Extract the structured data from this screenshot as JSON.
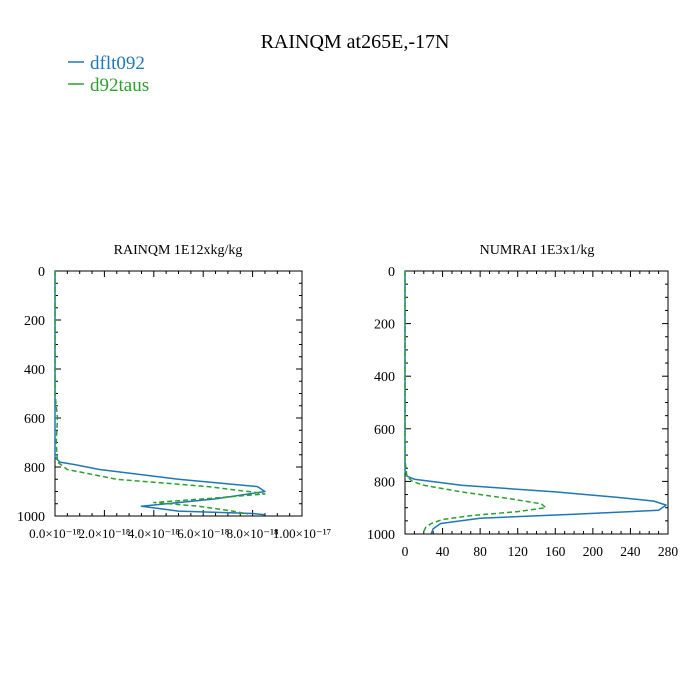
{
  "title": "RAINQM at265E,-17N",
  "legend": {
    "placement": "top-left",
    "entries": [
      {
        "name": "dflt092",
        "color": "#1f77b4",
        "style": "solid"
      },
      {
        "name": "d92taus",
        "color": "#2ca02c",
        "style": "dashed"
      }
    ]
  },
  "chart_data": [
    {
      "type": "line",
      "title": "RAINQM  1E12xkg/kg",
      "xlim": [
        0,
        1e-17
      ],
      "ylim": [
        1000,
        0
      ],
      "y_inverted": true,
      "xtick_labels": [
        "0.0×10⁻¹⁸",
        "2.0×10⁻¹⁸",
        "4.0×10⁻¹⁸",
        "6.0×10⁻¹⁸",
        "8.0×10⁻¹⁸",
        "1.00×10⁻¹⁷"
      ],
      "ytick_labels": [
        "0",
        "200",
        "400",
        "600",
        "800",
        "1000"
      ],
      "xticks": [
        0,
        2e-18,
        4e-18,
        6e-18,
        8e-18,
        1e-17
      ],
      "yticks": [
        0,
        200,
        400,
        600,
        800,
        1000
      ],
      "grid": false,
      "series": [
        {
          "name": "dflt092",
          "color": "#1f77b4",
          "dash": false,
          "points": [
            [
              0,
              0
            ],
            [
              0,
              700
            ],
            [
              0,
              760
            ],
            [
              2e-19,
              780
            ],
            [
              8e-19,
              790
            ],
            [
              1.8e-18,
              810
            ],
            [
              5e-18,
              850
            ],
            [
              8.2e-18,
              880
            ],
            [
              8.5e-18,
              900
            ],
            [
              6.5e-18,
              930
            ],
            [
              3.5e-18,
              960
            ],
            [
              5e-18,
              980
            ],
            [
              8e-18,
              990
            ],
            [
              8.5e-18,
              995
            ]
          ]
        },
        {
          "name": "d92taus",
          "color": "#2ca02c",
          "dash": true,
          "points": [
            [
              0,
              0
            ],
            [
              0,
              500
            ],
            [
              1e-19,
              600
            ],
            [
              5e-20,
              700
            ],
            [
              1e-19,
              780
            ],
            [
              5e-19,
              810
            ],
            [
              2.5e-18,
              850
            ],
            [
              6.2e-18,
              880
            ],
            [
              8.2e-18,
              905
            ],
            [
              8.5e-18,
              910
            ],
            [
              6e-18,
              930
            ],
            [
              4e-18,
              945
            ],
            [
              5.8e-18,
              960
            ],
            [
              7.2e-18,
              980
            ],
            [
              7.8e-18,
              992
            ]
          ]
        }
      ]
    },
    {
      "type": "line",
      "title": "NUMRAI  1E3x1/kg",
      "xlim": [
        0,
        280
      ],
      "ylim": [
        1000,
        0
      ],
      "y_inverted": true,
      "xtick_labels": [
        "0",
        "40",
        "80",
        "120",
        "160",
        "200",
        "240",
        "280"
      ],
      "ytick_labels": [
        "0",
        "200",
        "400",
        "600",
        "800",
        "1000"
      ],
      "xticks": [
        0,
        40,
        80,
        120,
        160,
        200,
        240,
        280
      ],
      "yticks": [
        0,
        200,
        400,
        600,
        800,
        1000
      ],
      "grid": false,
      "series": [
        {
          "name": "dflt092",
          "color": "#1f77b4",
          "dash": false,
          "points": [
            [
              0,
              0
            ],
            [
              0,
              700
            ],
            [
              0,
              760
            ],
            [
              2,
              780
            ],
            [
              10,
              792
            ],
            [
              60,
              815
            ],
            [
              160,
              840
            ],
            [
              225,
              860
            ],
            [
              265,
              875
            ],
            [
              278,
              890
            ],
            [
              270,
              910
            ],
            [
              180,
              925
            ],
            [
              80,
              940
            ],
            [
              38,
              960
            ],
            [
              30,
              980
            ],
            [
              28,
              998
            ]
          ]
        },
        {
          "name": "d92taus",
          "color": "#2ca02c",
          "dash": true,
          "points": [
            [
              0,
              0
            ],
            [
              0,
              720
            ],
            [
              2,
              780
            ],
            [
              8,
              800
            ],
            [
              20,
              815
            ],
            [
              60,
              840
            ],
            [
              110,
              865
            ],
            [
              145,
              885
            ],
            [
              150,
              900
            ],
            [
              120,
              915
            ],
            [
              70,
              930
            ],
            [
              40,
              945
            ],
            [
              28,
              960
            ],
            [
              22,
              975
            ],
            [
              20,
              990
            ],
            [
              18,
              998
            ]
          ]
        }
      ]
    }
  ]
}
